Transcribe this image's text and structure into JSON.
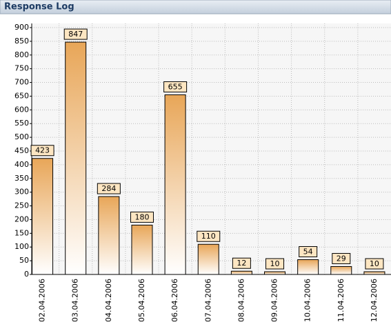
{
  "chart_data": {
    "type": "bar",
    "title": "Response Log",
    "categories": [
      "02.04.2006",
      "03.04.2006",
      "04.04.2006",
      "05.04.2006",
      "06.04.2006",
      "07.04.2006",
      "08.04.2006",
      "09.04.2006",
      "10.04.2006",
      "11.04.2006",
      "12.04.2006"
    ],
    "values": [
      423,
      847,
      284,
      180,
      655,
      110,
      12,
      10,
      54,
      29,
      10
    ],
    "color": "#e8a658",
    "ylim": [
      0,
      900
    ],
    "yticks": [
      0,
      50,
      100,
      150,
      200,
      250,
      300,
      350,
      400,
      450,
      500,
      550,
      600,
      650,
      700,
      750,
      800,
      850,
      900
    ],
    "grid": true
  }
}
